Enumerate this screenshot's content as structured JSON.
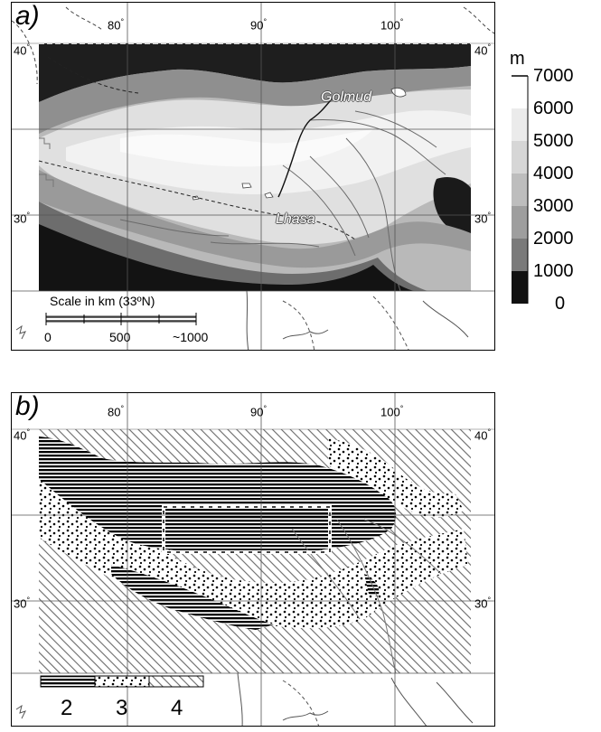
{
  "panel_a": {
    "label": "a)",
    "lon_ticks": [
      "80",
      "90",
      "100"
    ],
    "lat_ticks": [
      "40",
      "30"
    ],
    "places": [
      "Golmud",
      "Lhasa"
    ],
    "scale": {
      "title": "Scale in km (33ºN)",
      "ticks": [
        "0",
        "500",
        "1000"
      ]
    },
    "colorbar": {
      "unit": "m",
      "ticks": [
        "7000",
        "6000",
        "5000",
        "4000",
        "3000",
        "2000",
        "1000",
        "0"
      ],
      "colors": [
        "#ffffff",
        "#ebebeb",
        "#d6d6d6",
        "#bdbdbd",
        "#9e9e9e",
        "#7a7a7a",
        "#111111"
      ]
    }
  },
  "panel_b": {
    "label": "b)",
    "lon_ticks": [
      "80",
      "90",
      "100"
    ],
    "lat_ticks": [
      "40",
      "30"
    ],
    "legend_classes": [
      "2",
      "3",
      "4"
    ]
  }
}
